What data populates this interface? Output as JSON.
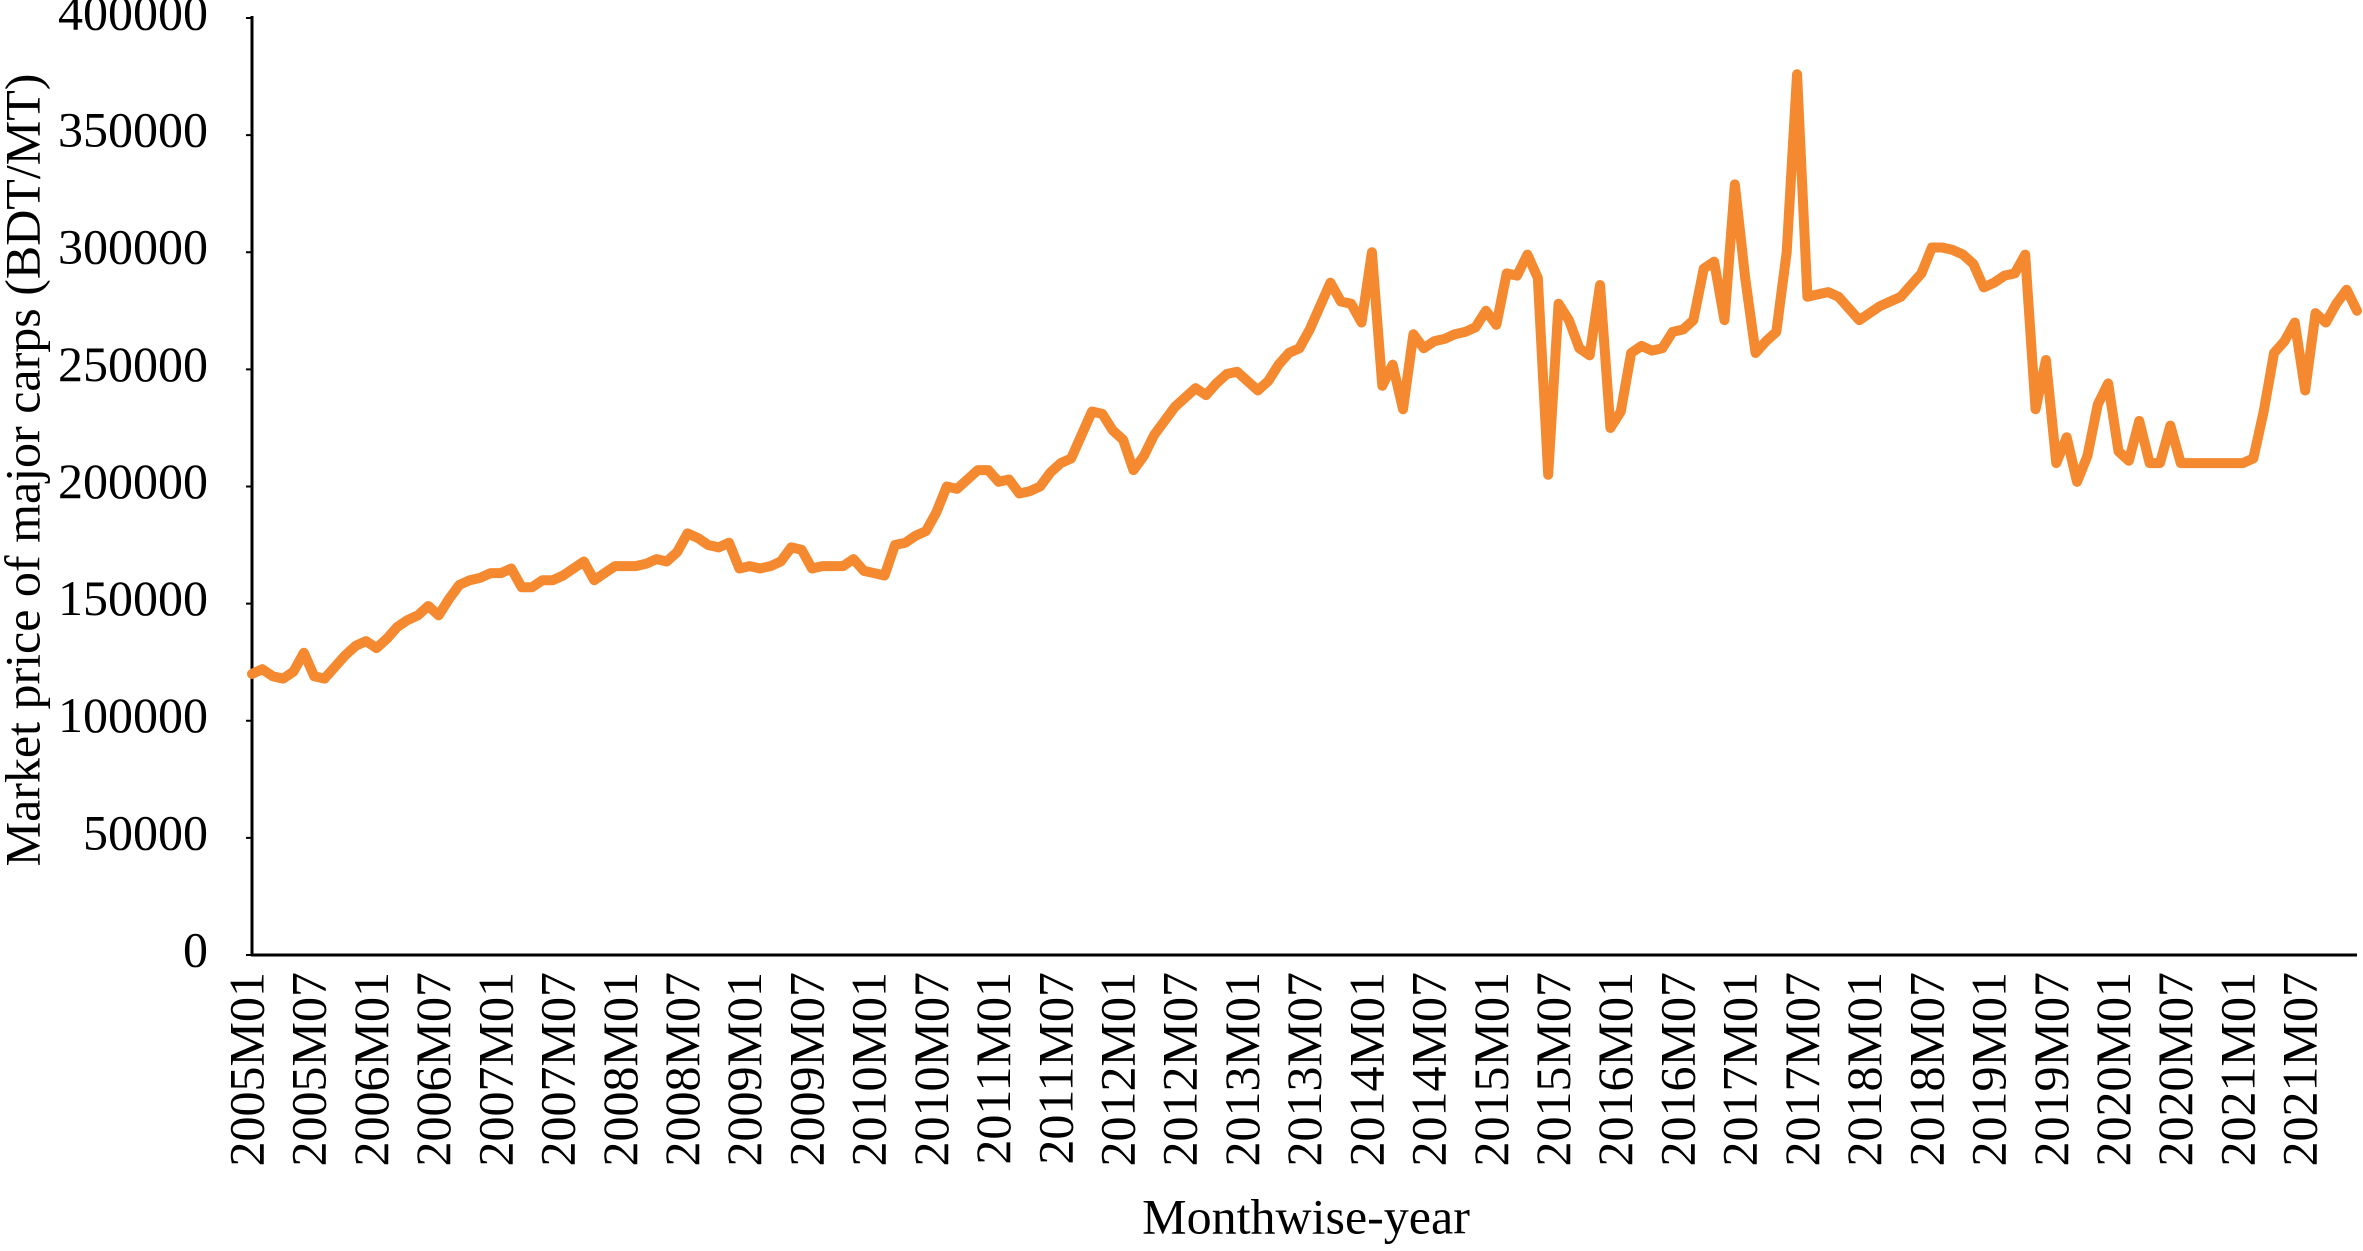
{
  "chart_data": {
    "type": "line",
    "y_label": "Market price of major carps (BDT/MT)",
    "x_label": "Monthwise-year",
    "color": "#f5892f",
    "categories": [
      "2005M01",
      null,
      null,
      null,
      null,
      null,
      "2005M07",
      null,
      null,
      null,
      null,
      null,
      "2006M01",
      null,
      null,
      null,
      null,
      null,
      "2006M07",
      null,
      null,
      null,
      null,
      null,
      "2007M01",
      null,
      null,
      null,
      null,
      null,
      "2007M07",
      null,
      null,
      null,
      null,
      null,
      "2008M01",
      null,
      null,
      null,
      null,
      null,
      "2008M07",
      null,
      null,
      null,
      null,
      null,
      "2009M01",
      null,
      null,
      null,
      null,
      null,
      "2009M07",
      null,
      null,
      null,
      null,
      null,
      "2010M01",
      null,
      null,
      null,
      null,
      null,
      "2010M07",
      null,
      null,
      null,
      null,
      null,
      "2011M01",
      null,
      null,
      null,
      null,
      null,
      "2011M07",
      null,
      null,
      null,
      null,
      null,
      "2012M01",
      null,
      null,
      null,
      null,
      null,
      "2012M07",
      null,
      null,
      null,
      null,
      null,
      "2013M01",
      null,
      null,
      null,
      null,
      null,
      "2013M07",
      null,
      null,
      null,
      null,
      null,
      "2014M01",
      null,
      null,
      null,
      null,
      null,
      "2014M07",
      null,
      null,
      null,
      null,
      null,
      "2015M01",
      null,
      null,
      null,
      null,
      null,
      "2015M07",
      null,
      null,
      null,
      null,
      null,
      "2016M01",
      null,
      null,
      null,
      null,
      null,
      "2016M07",
      null,
      null,
      null,
      null,
      null,
      "2017M01",
      null,
      null,
      null,
      null,
      null,
      "2017M07",
      null,
      null,
      null,
      null,
      null,
      "2018M01",
      null,
      null,
      null,
      null,
      null,
      "2018M07",
      null,
      null,
      null,
      null,
      null,
      "2019M01",
      null,
      null,
      null,
      null,
      null,
      "2019M07",
      null,
      null,
      null,
      null,
      null,
      "2020M01",
      null,
      null,
      null,
      null,
      null,
      "2020M07",
      null,
      null,
      null,
      null,
      null,
      "2021M01",
      null,
      null,
      null,
      null,
      null,
      "2021M07",
      null,
      null,
      null,
      null,
      null
    ],
    "values": [
      120000,
      122000,
      119000,
      118000,
      121000,
      129000,
      119000,
      118000,
      123000,
      128000,
      132000,
      134000,
      131000,
      135000,
      140000,
      143000,
      145000,
      149000,
      145000,
      152000,
      158000,
      160000,
      161000,
      163000,
      163000,
      165000,
      157000,
      157000,
      160000,
      160000,
      162000,
      165000,
      168000,
      160000,
      163000,
      166000,
      166000,
      166000,
      167000,
      169000,
      168000,
      172000,
      180000,
      178000,
      175000,
      174000,
      176000,
      165000,
      166000,
      165000,
      166000,
      168000,
      174000,
      173000,
      165000,
      166000,
      166000,
      166000,
      169000,
      164000,
      163000,
      162000,
      175000,
      176000,
      179000,
      181000,
      189000,
      200000,
      199000,
      203000,
      207000,
      207000,
      202000,
      203000,
      197000,
      198000,
      200000,
      206000,
      210000,
      212000,
      222000,
      232000,
      231000,
      224000,
      220000,
      207000,
      213000,
      222000,
      228000,
      234000,
      238000,
      242000,
      239000,
      244000,
      248000,
      249000,
      245000,
      241000,
      245000,
      252000,
      257000,
      259000,
      267000,
      277000,
      287000,
      279000,
      278000,
      270000,
      300000,
      243000,
      252000,
      233000,
      265000,
      259000,
      262000,
      263000,
      265000,
      266000,
      268000,
      275000,
      269000,
      291000,
      290000,
      299000,
      289000,
      205000,
      278000,
      271000,
      259000,
      256000,
      286000,
      225000,
      232000,
      257000,
      260000,
      258000,
      259000,
      266000,
      267000,
      271000,
      293000,
      296000,
      271000,
      329000,
      289000,
      257000,
      262000,
      266000,
      300000,
      376000,
      281000,
      282000,
      283000,
      281000,
      276000,
      271000,
      274000,
      277000,
      279000,
      281000,
      286000,
      291000,
      302000,
      302000,
      301000,
      299000,
      295000,
      285000,
      287000,
      290000,
      291000,
      299000,
      233000,
      254000,
      210000,
      221000,
      202000,
      213000,
      235000,
      244000,
      215000,
      211000,
      228000,
      210000,
      210000,
      226000,
      210000,
      210000,
      210000,
      210000,
      210000,
      210000,
      210000,
      212000,
      232000,
      257000,
      262000,
      270000,
      241000,
      274000,
      270000,
      278000,
      284000,
      275000
    ],
    "ylim": [
      0,
      400000
    ],
    "yticks": [
      0,
      50000,
      100000,
      150000,
      200000,
      250000,
      300000,
      350000,
      400000
    ],
    "grid": false
  }
}
